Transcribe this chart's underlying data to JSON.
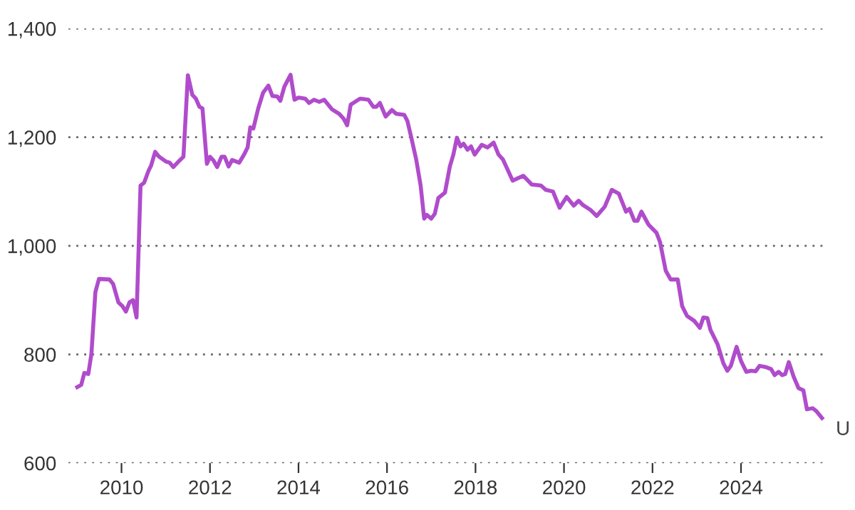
{
  "chart_data": {
    "type": "line",
    "x": [
      2009.0,
      2009.09,
      2009.16,
      2009.25,
      2009.32,
      2009.41,
      2009.49,
      2009.73,
      2009.81,
      2009.93,
      2010.02,
      2010.1,
      2010.18,
      2010.26,
      2010.34,
      2010.43,
      2010.51,
      2010.61,
      2010.67,
      2010.76,
      2010.85,
      2011.01,
      2011.09,
      2011.17,
      2011.31,
      2011.4,
      2011.5,
      2011.6,
      2011.68,
      2011.76,
      2011.83,
      2011.93,
      2012.0,
      2012.08,
      2012.16,
      2012.26,
      2012.33,
      2012.42,
      2012.5,
      2012.66,
      2012.77,
      2012.85,
      2012.91,
      2012.98,
      2013.09,
      2013.2,
      2013.32,
      2013.41,
      2013.52,
      2013.59,
      2013.68,
      2013.82,
      2013.91,
      2014.0,
      2014.15,
      2014.24,
      2014.35,
      2014.47,
      2014.58,
      2014.76,
      2014.92,
      2015.02,
      2015.1,
      2015.18,
      2015.39,
      2015.58,
      2015.69,
      2015.76,
      2015.84,
      2015.97,
      2016.11,
      2016.21,
      2016.39,
      2016.46,
      2016.55,
      2016.66,
      2016.76,
      2016.84,
      2016.9,
      2017.0,
      2017.08,
      2017.16,
      2017.31,
      2017.42,
      2017.5,
      2017.58,
      2017.66,
      2017.73,
      2017.82,
      2017.9,
      2017.98,
      2018.14,
      2018.27,
      2018.41,
      2018.52,
      2018.62,
      2018.84,
      2019.08,
      2019.27,
      2019.48,
      2019.59,
      2019.75,
      2019.9,
      2020.06,
      2020.22,
      2020.33,
      2020.43,
      2020.6,
      2020.74,
      2020.92,
      2021.08,
      2021.24,
      2021.4,
      2021.48,
      2021.59,
      2021.66,
      2021.75,
      2021.91,
      2022.09,
      2022.17,
      2022.3,
      2022.41,
      2022.57,
      2022.67,
      2022.78,
      2022.94,
      2023.07,
      2023.15,
      2023.24,
      2023.31,
      2023.47,
      2023.6,
      2023.69,
      2023.77,
      2023.9,
      2024.0,
      2024.12,
      2024.23,
      2024.33,
      2024.42,
      2024.55,
      2024.68,
      2024.76,
      2024.85,
      2024.93,
      2025.0,
      2025.08,
      2025.19,
      2025.3,
      2025.41,
      2025.49,
      2025.62,
      2025.7,
      2025.83
    ],
    "series": [
      {
        "color": "#b04ccc",
        "values": [
          740,
          744,
          766,
          764,
          801,
          915,
          939,
          938,
          930,
          896,
          889,
          879,
          896,
          900,
          868,
          1111,
          1116,
          1138,
          1148,
          1173,
          1164,
          1155,
          1153,
          1145,
          1157,
          1164,
          1314,
          1278,
          1271,
          1256,
          1253,
          1151,
          1164,
          1157,
          1145,
          1164,
          1164,
          1146,
          1158,
          1153,
          1168,
          1181,
          1218,
          1216,
          1253,
          1282,
          1295,
          1276,
          1275,
          1267,
          1293,
          1315,
          1269,
          1273,
          1271,
          1263,
          1269,
          1265,
          1269,
          1251,
          1243,
          1234,
          1222,
          1260,
          1271,
          1269,
          1256,
          1256,
          1263,
          1238,
          1250,
          1243,
          1241,
          1230,
          1199,
          1159,
          1111,
          1050,
          1057,
          1050,
          1059,
          1088,
          1098,
          1146,
          1168,
          1199,
          1183,
          1188,
          1177,
          1183,
          1168,
          1186,
          1181,
          1190,
          1168,
          1159,
          1120,
          1129,
          1113,
          1111,
          1103,
          1100,
          1070,
          1090,
          1074,
          1083,
          1075,
          1066,
          1055,
          1072,
          1103,
          1096,
          1063,
          1068,
          1046,
          1046,
          1063,
          1039,
          1024,
          1007,
          954,
          938,
          938,
          889,
          871,
          862,
          849,
          868,
          867,
          845,
          819,
          784,
          770,
          779,
          814,
          788,
          768,
          770,
          769,
          779,
          777,
          773,
          762,
          768,
          762,
          764,
          786,
          759,
          738,
          734,
          699,
          701,
          696,
          683
        ]
      }
    ],
    "xlim": [
      2008.8,
      2025.9
    ],
    "xticks": [
      2010,
      2012,
      2014,
      2016,
      2018,
      2020,
      2022,
      2024
    ],
    "ylim": [
      600,
      1400
    ],
    "yticks": [
      {
        "value": 600,
        "label": "600"
      },
      {
        "value": 800,
        "label": "800"
      },
      {
        "value": 1000,
        "label": "1,000"
      },
      {
        "value": 1200,
        "label": "1,200"
      },
      {
        "value": 1400,
        "label": "1,400"
      }
    ],
    "grid": "y",
    "legend": false,
    "marker": "none",
    "line_style": "solid",
    "annotations": [
      {
        "text": "U",
        "x": 2025.83,
        "y": 683
      }
    ]
  }
}
